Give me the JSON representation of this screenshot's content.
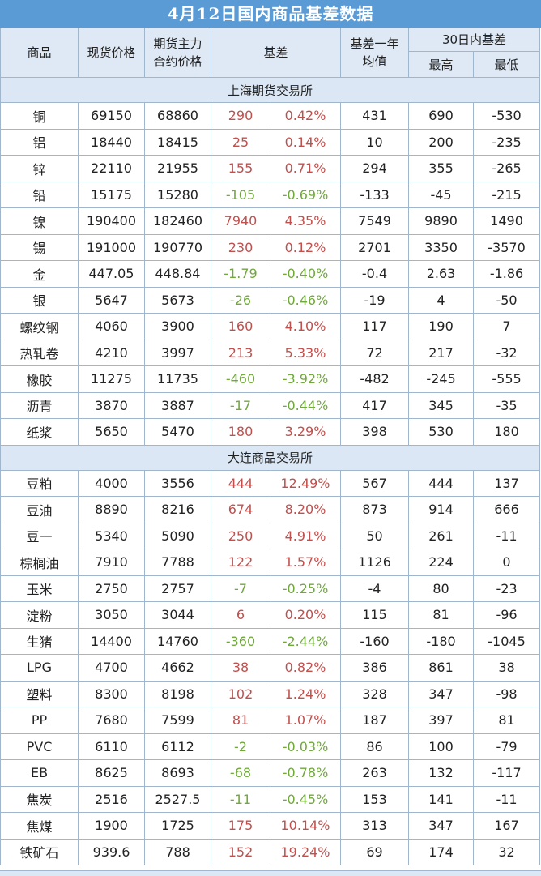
{
  "title": "4月12日国内商品基差数据",
  "headers": {
    "commodity": "商品",
    "spot": "现货价格",
    "futures": "期货主力合约价格",
    "basis": "基差",
    "avg": "基差一年均值",
    "range30": "30日内基差",
    "high": "最高",
    "low": "最低"
  },
  "sections": [
    {
      "name": "上海期货交易所",
      "rows": [
        [
          "铜",
          "69150",
          "68860",
          "290",
          "0.42%",
          "431",
          "690",
          "-530"
        ],
        [
          "铝",
          "18440",
          "18415",
          "25",
          "0.14%",
          "10",
          "200",
          "-235"
        ],
        [
          "锌",
          "22110",
          "21955",
          "155",
          "0.71%",
          "294",
          "355",
          "-265"
        ],
        [
          "铅",
          "15175",
          "15280",
          "-105",
          "-0.69%",
          "-133",
          "-45",
          "-215"
        ],
        [
          "镍",
          "190400",
          "182460",
          "7940",
          "4.35%",
          "7549",
          "9890",
          "1490"
        ],
        [
          "锡",
          "191000",
          "190770",
          "230",
          "0.12%",
          "2701",
          "3350",
          "-3570"
        ],
        [
          "金",
          "447.05",
          "448.84",
          "-1.79",
          "-0.40%",
          "-0.4",
          "2.63",
          "-1.86"
        ],
        [
          "银",
          "5647",
          "5673",
          "-26",
          "-0.46%",
          "-19",
          "4",
          "-50"
        ],
        [
          "螺纹钢",
          "4060",
          "3900",
          "160",
          "4.10%",
          "117",
          "190",
          "7"
        ],
        [
          "热轧卷",
          "4210",
          "3997",
          "213",
          "5.33%",
          "72",
          "217",
          "-32"
        ],
        [
          "橡胶",
          "11275",
          "11735",
          "-460",
          "-3.92%",
          "-482",
          "-245",
          "-555"
        ],
        [
          "沥青",
          "3870",
          "3887",
          "-17",
          "-0.44%",
          "417",
          "345",
          "-35"
        ],
        [
          "纸浆",
          "5650",
          "5470",
          "180",
          "3.29%",
          "398",
          "530",
          "180"
        ]
      ]
    },
    {
      "name": "大连商品交易所",
      "rows": [
        [
          "豆粕",
          "4000",
          "3556",
          "444",
          "12.49%",
          "567",
          "444",
          "137"
        ],
        [
          "豆油",
          "8890",
          "8216",
          "674",
          "8.20%",
          "873",
          "914",
          "666"
        ],
        [
          "豆一",
          "5340",
          "5090",
          "250",
          "4.91%",
          "50",
          "261",
          "-11"
        ],
        [
          "棕榈油",
          "7910",
          "7788",
          "122",
          "1.57%",
          "1126",
          "224",
          "0"
        ],
        [
          "玉米",
          "2750",
          "2757",
          "-7",
          "-0.25%",
          "-4",
          "80",
          "-23"
        ],
        [
          "淀粉",
          "3050",
          "3044",
          "6",
          "0.20%",
          "115",
          "81",
          "-96"
        ],
        [
          "生猪",
          "14400",
          "14760",
          "-360",
          "-2.44%",
          "-160",
          "-180",
          "-1045"
        ],
        [
          "LPG",
          "4700",
          "4662",
          "38",
          "0.82%",
          "386",
          "861",
          "38"
        ],
        [
          "塑料",
          "8300",
          "8198",
          "102",
          "1.24%",
          "328",
          "347",
          "-98"
        ],
        [
          "PP",
          "7680",
          "7599",
          "81",
          "1.07%",
          "187",
          "397",
          "81"
        ],
        [
          "PVC",
          "6110",
          "6112",
          "-2",
          "-0.03%",
          "86",
          "100",
          "-79"
        ],
        [
          "EB",
          "8625",
          "8693",
          "-68",
          "-0.78%",
          "263",
          "132",
          "-117"
        ],
        [
          "焦炭",
          "2516",
          "2527.5",
          "-11",
          "-0.45%",
          "153",
          "141",
          "-11"
        ],
        [
          "焦煤",
          "1900",
          "1725",
          "175",
          "10.14%",
          "313",
          "347",
          "167"
        ],
        [
          "铁矿石",
          "939.6",
          "788",
          "152",
          "19.24%",
          "69",
          "174",
          "32"
        ]
      ]
    }
  ],
  "colors": {
    "header_bg": "#5b9bd5",
    "positive": "#c0504d",
    "negative": "#70a83b",
    "section_bg": "#dbe7f4"
  }
}
